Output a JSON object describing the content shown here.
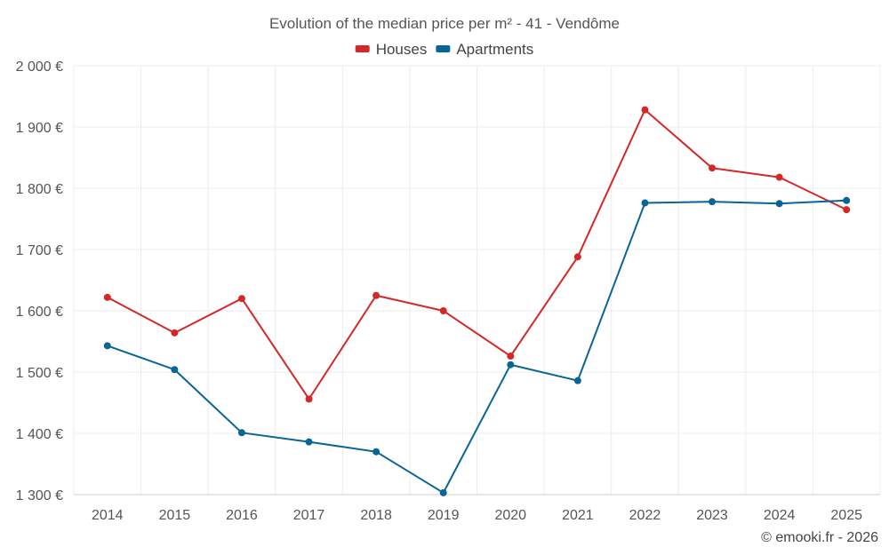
{
  "chart_data": {
    "type": "line",
    "title": "Evolution of the median price per m² - 41 - Vendôme",
    "xlabel": "",
    "ylabel": "",
    "x": [
      "2014",
      "2015",
      "2016",
      "2017",
      "2018",
      "2019",
      "2020",
      "2021",
      "2022",
      "2023",
      "2024",
      "2025"
    ],
    "ylim": [
      1300,
      2000
    ],
    "yticks": [
      1300,
      1400,
      1500,
      1600,
      1700,
      1800,
      1900,
      2000
    ],
    "ytick_labels": [
      "1 300 €",
      "1 400 €",
      "1 500 €",
      "1 600 €",
      "1 700 €",
      "1 800 €",
      "1 900 €",
      "2 000 €"
    ],
    "grid": true,
    "legend_position": "top-center",
    "series": [
      {
        "name": "Houses",
        "color": "#d62728",
        "values": [
          1622,
          1564,
          1620,
          1456,
          1625,
          1600,
          1526,
          1688,
          1928,
          1833,
          1818,
          1765
        ]
      },
      {
        "name": "Apartments",
        "color": "#0a6597",
        "values": [
          1543,
          1504,
          1401,
          1386,
          1370,
          1303,
          1512,
          1486,
          1776,
          1778,
          1775,
          1780
        ]
      }
    ]
  },
  "credit": "© emooki.fr - 2026"
}
